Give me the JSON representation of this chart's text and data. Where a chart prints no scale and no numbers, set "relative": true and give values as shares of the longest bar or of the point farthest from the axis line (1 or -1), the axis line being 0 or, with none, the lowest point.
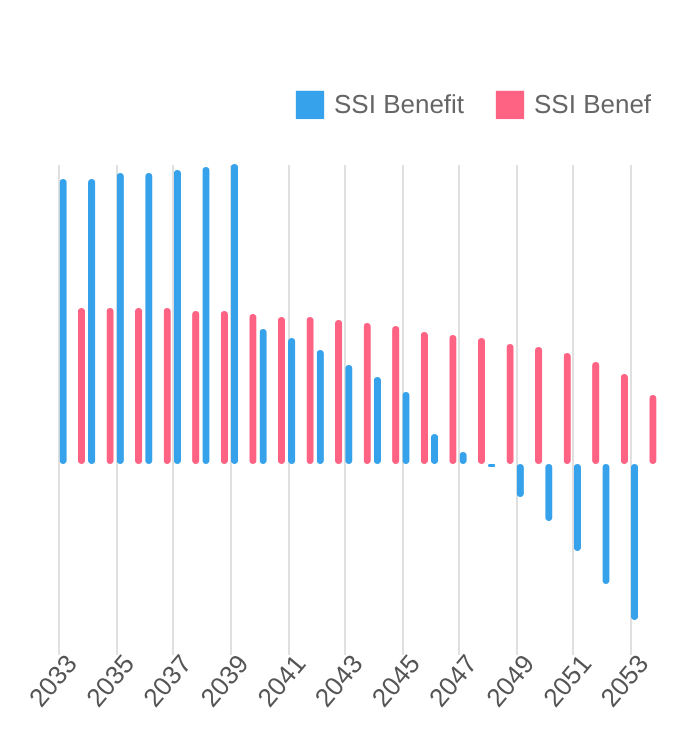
{
  "chart_data": {
    "type": "bar",
    "relative": true,
    "grid": "x",
    "legend": "top right",
    "categories": [
      "2033",
      null,
      "2035",
      null,
      "2037",
      null,
      "2039",
      null,
      "2041",
      null,
      "2043",
      null,
      "2045",
      null,
      "2047",
      null,
      "2049",
      null,
      "2051",
      null,
      "2053"
    ],
    "series": [
      {
        "name": "SSI Benefit",
        "color": "#36a2eb",
        "values": [
          0.95,
          0.95,
          0.97,
          0.97,
          0.98,
          0.99,
          1,
          0.45,
          0.42,
          0.38,
          0.33,
          0.29,
          0.24,
          0.1,
          0.04,
          -0.01,
          -0.11,
          -0.19,
          -0.29,
          -0.4,
          -0.52
        ]
      },
      {
        "name": "SSI Benef",
        "color": "#ff6384",
        "values": [
          0.52,
          0.52,
          0.52,
          0.52,
          0.51,
          0.51,
          0.5,
          0.49,
          0.49,
          0.48,
          0.47,
          0.46,
          0.44,
          0.43,
          0.42,
          0.4,
          0.39,
          0.37,
          0.34,
          0.3,
          0.23
        ]
      }
    ]
  }
}
